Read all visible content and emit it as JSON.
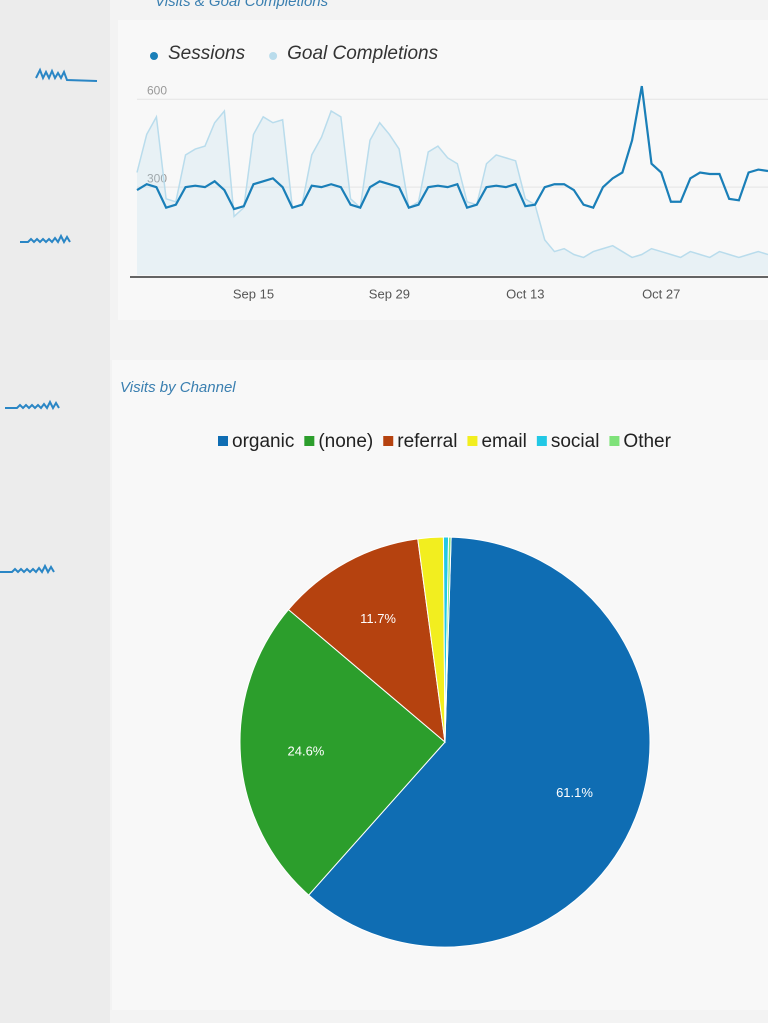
{
  "chart_data": [
    {
      "type": "line",
      "title": "Visits & Goal Completions",
      "categories": [
        null,
        null,
        null,
        null,
        null,
        null,
        null,
        null,
        null,
        null,
        null,
        null,
        "Sep 15",
        null,
        null,
        null,
        null,
        null,
        null,
        null,
        null,
        null,
        null,
        null,
        null,
        null,
        "Sep 29",
        null,
        null,
        null,
        null,
        null,
        null,
        null,
        null,
        null,
        null,
        null,
        null,
        null,
        "Oct 13",
        null,
        null,
        null,
        null,
        null,
        null,
        null,
        null,
        null,
        null,
        null,
        null,
        null,
        "Oct 27",
        null,
        null,
        null,
        null,
        null,
        null,
        null,
        null,
        null,
        null,
        null
      ],
      "series": [
        {
          "name": "Sessions",
          "color": "#1a7fb8",
          "values": [
            290,
            310,
            300,
            230,
            240,
            300,
            305,
            300,
            320,
            290,
            225,
            235,
            310,
            320,
            330,
            300,
            230,
            240,
            305,
            300,
            310,
            300,
            240,
            230,
            300,
            320,
            310,
            300,
            230,
            240,
            300,
            305,
            300,
            310,
            230,
            240,
            300,
            305,
            300,
            310,
            235,
            240,
            300,
            310,
            310,
            290,
            240,
            230,
            300,
            330,
            350,
            460,
            645,
            380,
            350,
            250,
            250,
            330,
            350,
            345,
            345,
            260,
            255,
            350,
            360,
            355
          ]
        },
        {
          "name": "Goal Completions",
          "color": "#b9dcec",
          "values": [
            350,
            480,
            540,
            260,
            250,
            410,
            430,
            440,
            520,
            560,
            200,
            230,
            480,
            540,
            520,
            530,
            230,
            240,
            410,
            470,
            560,
            540,
            260,
            230,
            460,
            520,
            480,
            430,
            230,
            250,
            420,
            440,
            400,
            380,
            250,
            240,
            380,
            410,
            400,
            390,
            260,
            240,
            120,
            80,
            90,
            70,
            60,
            80,
            90,
            100,
            80,
            60,
            70,
            90,
            80,
            70,
            60,
            80,
            70,
            60,
            80,
            70,
            60,
            70,
            80,
            70
          ]
        }
      ],
      "ylim": [
        0,
        700
      ],
      "yticks": [
        300,
        600
      ]
    },
    {
      "type": "pie",
      "title": "Visits by Channel",
      "categories": [
        "organic",
        "(none)",
        "referral",
        "email",
        "social",
        "Other"
      ],
      "values": [
        61.1,
        24.6,
        11.7,
        2.0,
        0.4,
        0.2
      ],
      "value_labels": [
        "61.1%",
        "24.6%",
        "11.7%",
        null,
        null,
        null
      ],
      "colors": [
        "#0f6db3",
        "#2c9e2c",
        "#b5420f",
        "#f2ee1f",
        "#22c8e5",
        "#7fe27a"
      ]
    }
  ]
}
